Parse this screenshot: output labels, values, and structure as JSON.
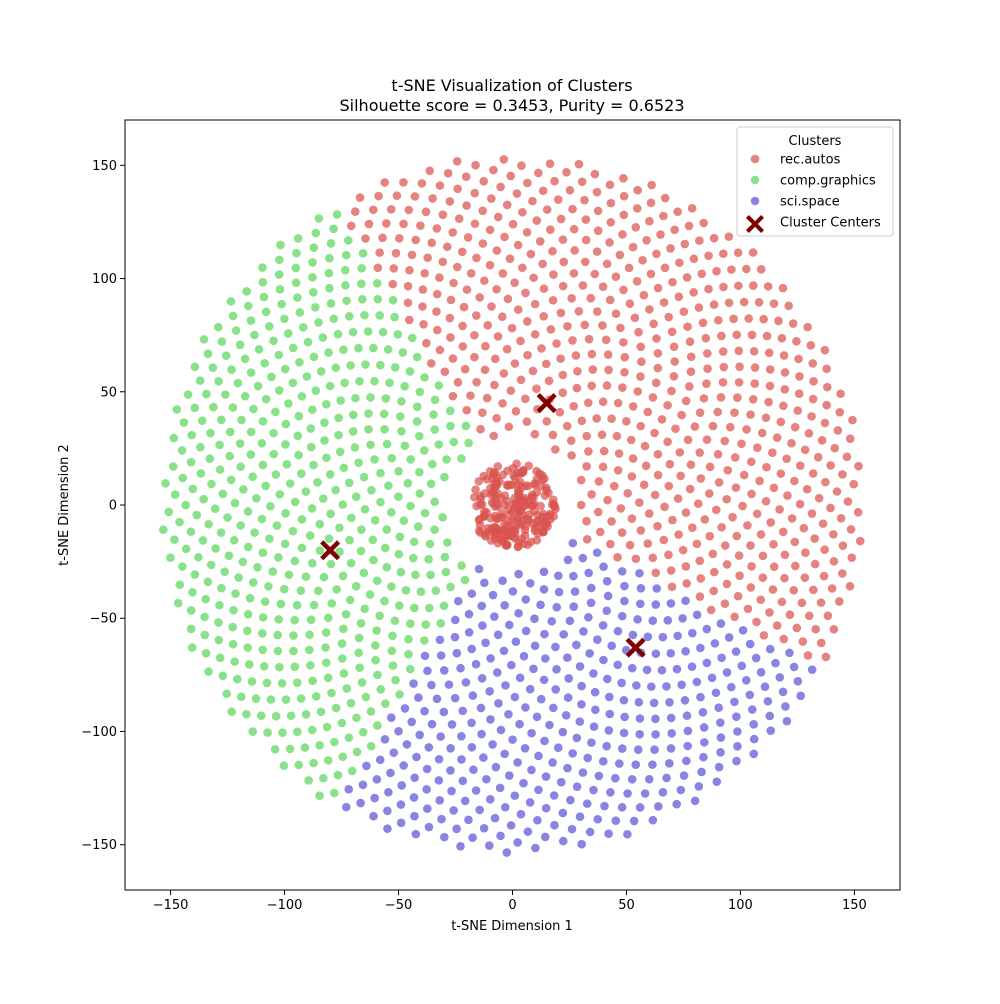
{
  "chart_data": {
    "type": "scatter",
    "title": "t-SNE Visualization of Clusters",
    "subtitle": "Silhouette score = 0.3453, Purity = 0.6523",
    "xlabel": "t-SNE Dimension 1",
    "ylabel": "t-SNE Dimension 2",
    "xlim": [
      -170,
      170
    ],
    "ylim": [
      -170,
      170
    ],
    "xticks": [
      -150,
      -100,
      -50,
      0,
      50,
      100,
      150
    ],
    "yticks": [
      -150,
      -100,
      -50,
      0,
      50,
      100,
      150
    ],
    "xtick_labels": [
      "−150",
      "−100",
      "−50",
      "0",
      "50",
      "100",
      "150"
    ],
    "ytick_labels": [
      "−150",
      "−100",
      "−50",
      "0",
      "50",
      "100",
      "150"
    ],
    "grid": false,
    "legend": {
      "title": "Clusters",
      "placement": "top-right"
    },
    "series": [
      {
        "name": "rec.autos",
        "color": "#d9534f",
        "description_of_distribution": "angular sector roughly -28deg to 120deg of a disc radius 30-155, plus dense core near origin",
        "angle_range_deg": [
          -28,
          120
        ],
        "radius_range": [
          30,
          155
        ],
        "core": {
          "center": [
            0,
            0
          ],
          "radius": 20
        }
      },
      {
        "name": "comp.graphics",
        "color": "#5cd65c",
        "angle_range_deg": [
          120,
          240
        ],
        "radius_range": [
          30,
          155
        ]
      },
      {
        "name": "sci.space",
        "color": "#5a55d6",
        "angle_range_deg": [
          240,
          332
        ],
        "radius_range": [
          30,
          155
        ]
      }
    ],
    "cluster_centers": {
      "name": "Cluster Centers",
      "color": "#800000",
      "points": [
        [
          15,
          45
        ],
        [
          -80,
          -20
        ],
        [
          54,
          -63
        ]
      ]
    }
  }
}
